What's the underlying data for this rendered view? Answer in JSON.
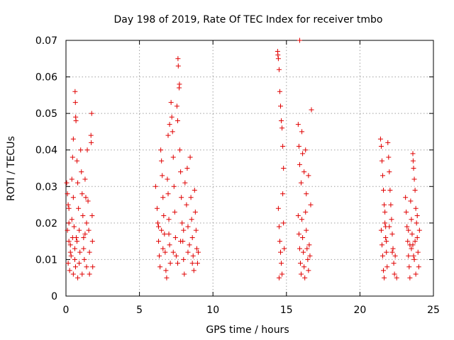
{
  "chart_data": {
    "type": "scatter",
    "title": "Day 198 of 2019, Rate Of TEC Index for receiver tmbo",
    "xlabel": "GPS time / hours",
    "ylabel": "ROTI / TECUs",
    "xlim": [
      0,
      25
    ],
    "ylim": [
      0,
      0.07
    ],
    "xticks": [
      0,
      5,
      10,
      15,
      20,
      25
    ],
    "xtick_labels": [
      "0",
      "5",
      "10",
      "15",
      "20",
      "25"
    ],
    "yticks": [
      0,
      0.01,
      0.02,
      0.03,
      0.04,
      0.05,
      0.06,
      0.07
    ],
    "ytick_labels": [
      "0",
      "0.01",
      "0.02",
      "0.03",
      "0.04",
      "0.05",
      "0.06",
      "0.07"
    ],
    "grid": true,
    "marker": "+",
    "color": "#e00000",
    "series": [
      {
        "name": "ROTI",
        "points": [
          [
            0.05,
            0.031
          ],
          [
            0.1,
            0.028
          ],
          [
            0.15,
            0.025
          ],
          [
            0.2,
            0.024
          ],
          [
            0.1,
            0.018
          ],
          [
            0.2,
            0.015
          ],
          [
            0.3,
            0.012
          ],
          [
            0.15,
            0.009
          ],
          [
            0.25,
            0.007
          ],
          [
            0.35,
            0.011
          ],
          [
            0.4,
            0.021
          ],
          [
            0.45,
            0.038
          ],
          [
            0.5,
            0.043
          ],
          [
            0.4,
            0.032
          ],
          [
            0.5,
            0.027
          ],
          [
            0.55,
            0.019
          ],
          [
            0.6,
            0.013
          ],
          [
            0.65,
            0.008
          ],
          [
            0.5,
            0.006
          ],
          [
            0.7,
            0.016
          ],
          [
            0.62,
            0.056
          ],
          [
            0.64,
            0.053
          ],
          [
            0.66,
            0.049
          ],
          [
            0.68,
            0.048
          ],
          [
            0.75,
            0.037
          ],
          [
            0.8,
            0.031
          ],
          [
            0.85,
            0.024
          ],
          [
            0.9,
            0.018
          ],
          [
            0.95,
            0.012
          ],
          [
            0.8,
            0.005
          ],
          [
            1.0,
            0.04
          ],
          [
            1.05,
            0.034
          ],
          [
            1.1,
            0.028
          ],
          [
            1.15,
            0.022
          ],
          [
            1.2,
            0.016
          ],
          [
            1.25,
            0.01
          ],
          [
            1.1,
            0.006
          ],
          [
            1.3,
            0.032
          ],
          [
            1.35,
            0.027
          ],
          [
            1.4,
            0.02
          ],
          [
            1.45,
            0.04
          ],
          [
            1.5,
            0.026
          ],
          [
            1.55,
            0.018
          ],
          [
            1.6,
            0.012
          ],
          [
            1.7,
            0.044
          ],
          [
            1.72,
            0.042
          ],
          [
            1.75,
            0.05
          ],
          [
            1.78,
            0.022
          ],
          [
            1.8,
            0.015
          ],
          [
            1.82,
            0.008
          ],
          [
            0.3,
            0.014
          ],
          [
            0.6,
            0.01
          ],
          [
            0.9,
            0.009
          ],
          [
            1.2,
            0.013
          ],
          [
            1.4,
            0.008
          ],
          [
            1.6,
            0.006
          ],
          [
            0.2,
            0.02
          ],
          [
            0.45,
            0.016
          ],
          [
            0.75,
            0.015
          ],
          [
            1.3,
            0.017
          ],
          [
            6.1,
            0.03
          ],
          [
            6.2,
            0.024
          ],
          [
            6.25,
            0.02
          ],
          [
            6.3,
            0.015
          ],
          [
            6.35,
            0.011
          ],
          [
            6.4,
            0.008
          ],
          [
            6.45,
            0.04
          ],
          [
            6.5,
            0.037
          ],
          [
            6.55,
            0.033
          ],
          [
            6.6,
            0.027
          ],
          [
            6.65,
            0.022
          ],
          [
            6.7,
            0.017
          ],
          [
            6.75,
            0.012
          ],
          [
            6.8,
            0.007
          ],
          [
            6.85,
            0.005
          ],
          [
            6.9,
            0.032
          ],
          [
            6.95,
            0.028
          ],
          [
            7.0,
            0.021
          ],
          [
            7.05,
            0.014
          ],
          [
            7.1,
            0.009
          ],
          [
            6.95,
            0.044
          ],
          [
            7.05,
            0.047
          ],
          [
            7.15,
            0.053
          ],
          [
            7.2,
            0.049
          ],
          [
            7.25,
            0.045
          ],
          [
            7.3,
            0.038
          ],
          [
            7.35,
            0.03
          ],
          [
            7.4,
            0.023
          ],
          [
            7.45,
            0.016
          ],
          [
            7.5,
            0.011
          ],
          [
            7.55,
            0.052
          ],
          [
            7.6,
            0.048
          ],
          [
            7.62,
            0.065
          ],
          [
            7.64,
            0.063
          ],
          [
            7.7,
            0.057
          ],
          [
            7.72,
            0.058
          ],
          [
            7.75,
            0.04
          ],
          [
            7.8,
            0.034
          ],
          [
            7.85,
            0.027
          ],
          [
            7.9,
            0.02
          ],
          [
            7.95,
            0.015
          ],
          [
            8.0,
            0.01
          ],
          [
            8.05,
            0.006
          ],
          [
            8.1,
            0.031
          ],
          [
            8.2,
            0.025
          ],
          [
            8.25,
            0.035
          ],
          [
            8.3,
            0.019
          ],
          [
            8.4,
            0.014
          ],
          [
            8.45,
            0.038
          ],
          [
            8.5,
            0.027
          ],
          [
            8.55,
            0.021
          ],
          [
            8.6,
            0.016
          ],
          [
            8.65,
            0.011
          ],
          [
            8.7,
            0.007
          ],
          [
            8.75,
            0.029
          ],
          [
            8.8,
            0.023
          ],
          [
            8.85,
            0.018
          ],
          [
            8.9,
            0.013
          ],
          [
            8.95,
            0.009
          ],
          [
            9.0,
            0.012
          ],
          [
            6.3,
            0.019
          ],
          [
            6.6,
            0.013
          ],
          [
            7.0,
            0.017
          ],
          [
            7.3,
            0.012
          ],
          [
            7.6,
            0.009
          ],
          [
            8.0,
            0.018
          ],
          [
            8.3,
            0.012
          ],
          [
            8.6,
            0.009
          ],
          [
            6.5,
            0.018
          ],
          [
            7.8,
            0.015
          ],
          [
            14.4,
            0.067
          ],
          [
            14.42,
            0.066
          ],
          [
            14.45,
            0.065
          ],
          [
            14.5,
            0.062
          ],
          [
            14.55,
            0.056
          ],
          [
            14.6,
            0.052
          ],
          [
            14.65,
            0.048
          ],
          [
            14.7,
            0.046
          ],
          [
            14.75,
            0.041
          ],
          [
            14.8,
            0.035
          ],
          [
            14.45,
            0.024
          ],
          [
            14.5,
            0.019
          ],
          [
            14.55,
            0.015
          ],
          [
            14.6,
            0.012
          ],
          [
            14.65,
            0.009
          ],
          [
            14.7,
            0.006
          ],
          [
            14.5,
            0.005
          ],
          [
            14.75,
            0.028
          ],
          [
            14.8,
            0.02
          ],
          [
            14.85,
            0.013
          ],
          [
            15.9,
            0.07
          ],
          [
            15.8,
            0.047
          ],
          [
            15.85,
            0.041
          ],
          [
            15.9,
            0.036
          ],
          [
            16.0,
            0.031
          ],
          [
            16.05,
            0.045
          ],
          [
            16.1,
            0.039
          ],
          [
            16.2,
            0.034
          ],
          [
            16.3,
            0.04
          ],
          [
            16.35,
            0.028
          ],
          [
            15.8,
            0.022
          ],
          [
            15.85,
            0.017
          ],
          [
            15.9,
            0.013
          ],
          [
            15.95,
            0.009
          ],
          [
            16.0,
            0.006
          ],
          [
            16.05,
            0.021
          ],
          [
            16.1,
            0.016
          ],
          [
            16.15,
            0.012
          ],
          [
            16.2,
            0.008
          ],
          [
            16.25,
            0.005
          ],
          [
            16.3,
            0.023
          ],
          [
            16.35,
            0.018
          ],
          [
            16.4,
            0.013
          ],
          [
            16.45,
            0.01
          ],
          [
            16.5,
            0.007
          ],
          [
            16.55,
            0.014
          ],
          [
            16.6,
            0.011
          ],
          [
            16.65,
            0.025
          ],
          [
            16.7,
            0.051
          ],
          [
            16.5,
            0.033
          ],
          [
            21.4,
            0.043
          ],
          [
            21.45,
            0.041
          ],
          [
            21.5,
            0.037
          ],
          [
            21.55,
            0.033
          ],
          [
            21.6,
            0.029
          ],
          [
            21.65,
            0.025
          ],
          [
            21.7,
            0.02
          ],
          [
            21.75,
            0.016
          ],
          [
            21.8,
            0.012
          ],
          [
            21.85,
            0.008
          ],
          [
            21.45,
            0.018
          ],
          [
            21.5,
            0.014
          ],
          [
            21.55,
            0.011
          ],
          [
            21.6,
            0.007
          ],
          [
            21.65,
            0.005
          ],
          [
            21.7,
            0.023
          ],
          [
            21.75,
            0.019
          ],
          [
            21.8,
            0.015
          ],
          [
            21.9,
            0.042
          ],
          [
            21.95,
            0.038
          ],
          [
            22.0,
            0.034
          ],
          [
            22.05,
            0.029
          ],
          [
            22.1,
            0.025
          ],
          [
            22.15,
            0.021
          ],
          [
            22.2,
            0.017
          ],
          [
            22.25,
            0.013
          ],
          [
            22.3,
            0.009
          ],
          [
            22.35,
            0.006
          ],
          [
            22.0,
            0.019
          ],
          [
            22.2,
            0.012
          ],
          [
            22.5,
            0.005
          ],
          [
            22.4,
            0.011
          ],
          [
            23.1,
            0.027
          ],
          [
            23.15,
            0.023
          ],
          [
            23.2,
            0.019
          ],
          [
            23.25,
            0.015
          ],
          [
            23.3,
            0.011
          ],
          [
            23.35,
            0.008
          ],
          [
            23.4,
            0.005
          ],
          [
            23.45,
            0.026
          ],
          [
            23.5,
            0.021
          ],
          [
            23.55,
            0.017
          ],
          [
            23.6,
            0.039
          ],
          [
            23.62,
            0.037
          ],
          [
            23.65,
            0.035
          ],
          [
            23.7,
            0.032
          ],
          [
            23.75,
            0.029
          ],
          [
            23.8,
            0.024
          ],
          [
            23.85,
            0.02
          ],
          [
            23.9,
            0.016
          ],
          [
            23.95,
            0.012
          ],
          [
            24.0,
            0.008
          ],
          [
            23.6,
            0.014
          ],
          [
            23.7,
            0.01
          ],
          [
            23.8,
            0.006
          ],
          [
            23.9,
            0.022
          ],
          [
            24.05,
            0.018
          ],
          [
            23.5,
            0.013
          ],
          [
            23.3,
            0.018
          ],
          [
            23.4,
            0.014
          ],
          [
            23.75,
            0.015
          ],
          [
            23.65,
            0.011
          ]
        ]
      }
    ]
  }
}
